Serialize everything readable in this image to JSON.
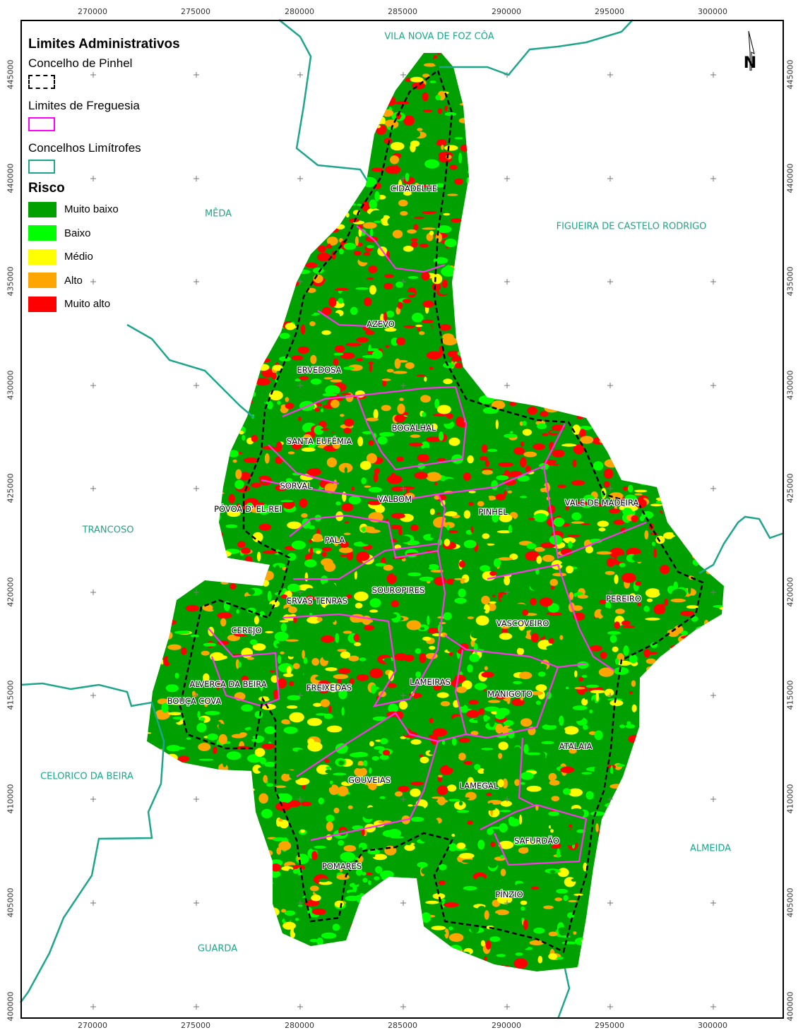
{
  "legend": {
    "title": "Limites Administrativos",
    "concelho": "Concelho de Pinhel",
    "freguesia": "Limites de Freguesia",
    "limitrofes": "Concelhos Limítrofes",
    "risk_title": "Risco",
    "risk_classes": [
      {
        "label": "Muito baixo",
        "color": "#00a000"
      },
      {
        "label": "Baixo",
        "color": "#00ff00"
      },
      {
        "label": "Médio",
        "color": "#ffff00"
      },
      {
        "label": "Alto",
        "color": "#ffa500"
      },
      {
        "label": "Muito alto",
        "color": "#ff0000"
      }
    ],
    "colors": {
      "concelho": "#000000",
      "freguesia": "#ff00ff",
      "limitrofes": "#1fa58c"
    }
  },
  "axes": {
    "x_ticks": [
      "270000",
      "275000",
      "280000",
      "285000",
      "290000",
      "295000",
      "300000"
    ],
    "y_ticks": [
      "445000",
      "440000",
      "435000",
      "430000",
      "425000",
      "420000",
      "415000",
      "410000",
      "405000",
      "400000"
    ]
  },
  "north_arrow": "N",
  "neighbors": [
    "VILA NOVA DE FOZ CÔA",
    "MÊDA",
    "FIGUEIRA DE CASTELO RODRIGO",
    "TRANCOSO",
    "CELORICO DA BEIRA",
    "ALMEIDA",
    "GUARDA"
  ],
  "parishes": [
    "CIDADELHE",
    "AZEVO",
    "ERVEDOSA",
    "BOGALHAL",
    "SANTA EUFÉMIA",
    "SORVAL",
    "PÓVOA D' EL-REI",
    "VALBOM",
    "PINHEL",
    "VALE DE MADEIRA",
    "PALA",
    "SOUROPIRES",
    "ERVAS TENRAS",
    "PEREIRO",
    "VASCOVEIRO",
    "CEREJO",
    "ALVERCA DA BEIRA",
    "BOUÇA COVA",
    "FREIXEDAS",
    "LAMEIRAS",
    "MANIGOTO",
    "ATALAIA",
    "GOUVEIAS",
    "LAMEGAL",
    "SAFURDÃO",
    "POMARES",
    "PÍNZIO"
  ]
}
